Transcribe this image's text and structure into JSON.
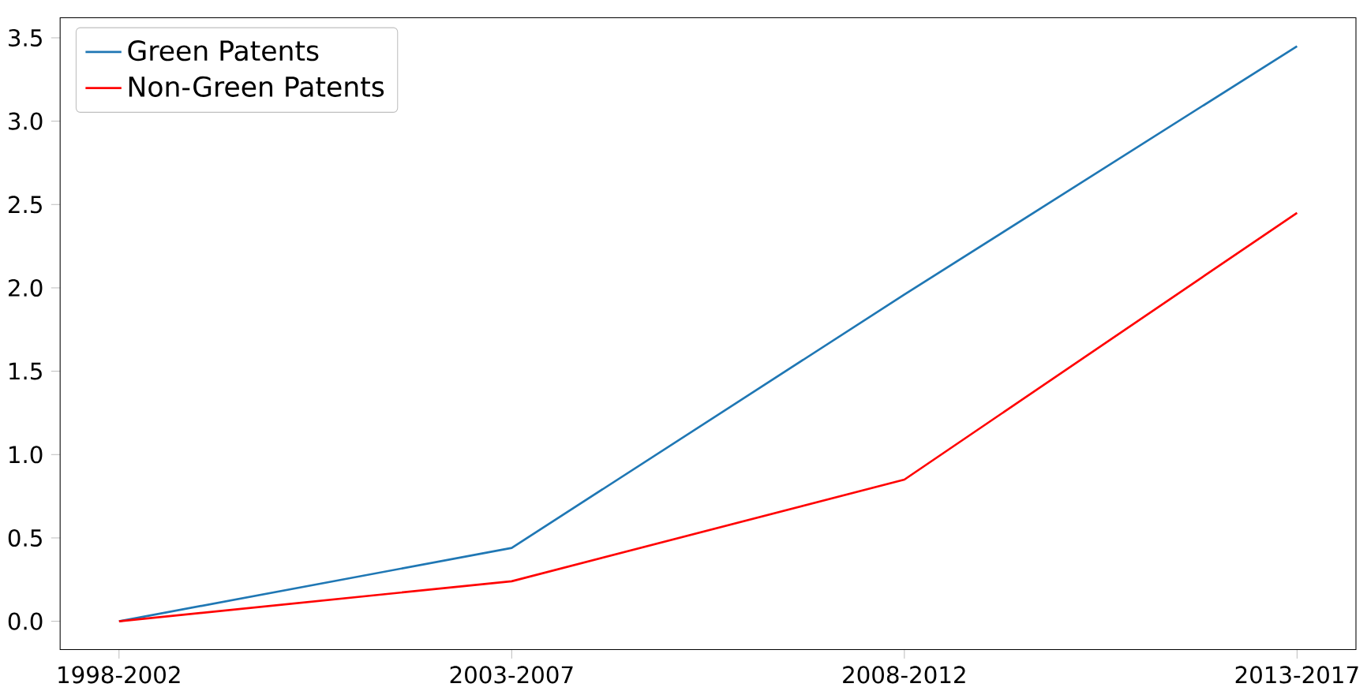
{
  "chart_data": {
    "type": "line",
    "categories": [
      "1998-2002",
      "2003-2007",
      "2008-2012",
      "2013-2017"
    ],
    "series": [
      {
        "name": "Green Patents",
        "color": "#1f77b4",
        "values": [
          0,
          0.44,
          1.96,
          3.45
        ]
      },
      {
        "name": "Non-Green Patents",
        "color": "#ff0000",
        "values": [
          0,
          0.24,
          0.85,
          2.45
        ]
      }
    ],
    "ylim": [
      -0.17,
      3.62
    ],
    "yticks": [
      {
        "value": 0,
        "label": "0.0"
      },
      {
        "value": 0.5,
        "label": "0.5"
      },
      {
        "value": 1,
        "label": "1.0"
      },
      {
        "value": 1.5,
        "label": "1.5"
      },
      {
        "value": 2,
        "label": "2.0"
      },
      {
        "value": 2.5,
        "label": "2.5"
      },
      {
        "value": 3,
        "label": "3.0"
      },
      {
        "value": 3.5,
        "label": "3.5"
      }
    ],
    "grid": false,
    "legend": "top left",
    "marker": "none",
    "line_style": "solid"
  }
}
